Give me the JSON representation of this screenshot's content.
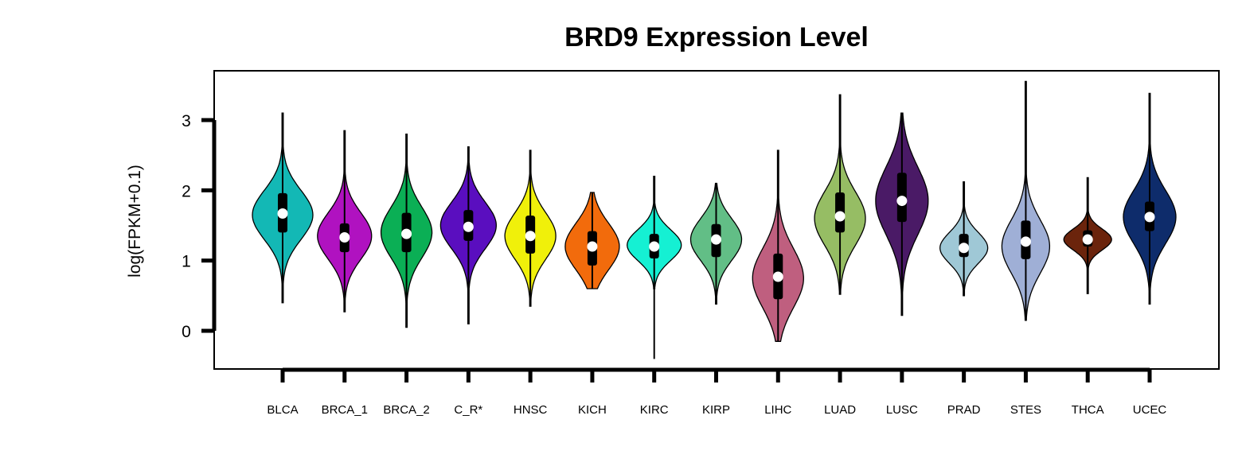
{
  "chart_data": {
    "type": "violin",
    "title": "BRD9 Expression Level",
    "ylabel": "log(FPKM+0.1)",
    "xlabel": "",
    "ylim": [
      -0.55,
      3.7
    ],
    "yticks": [
      0,
      1,
      2,
      3
    ],
    "categories": [
      "BLCA",
      "BRCA_1",
      "BRCA_2",
      "C_R*",
      "HNSC",
      "KICH",
      "KIRC",
      "KIRP",
      "LIHC",
      "LUAD",
      "LUSC",
      "PRAD",
      "STES",
      "THCA",
      "UCEC"
    ],
    "colors": [
      "#13B8B5",
      "#B012C0",
      "#0BAF55",
      "#5A0EBF",
      "#F0F00A",
      "#F26B0C",
      "#15F0D3",
      "#62BE86",
      "#BF5F7F",
      "#96BD64",
      "#4A1A66",
      "#9FC8D6",
      "#9FAFD6",
      "#6B240C",
      "#0E2C6B"
    ],
    "violins": [
      {
        "min": 0.4,
        "max": 3.1,
        "q1": 1.4,
        "median": 1.67,
        "q3": 1.96,
        "wmin": 0.4,
        "wmax": 3.1,
        "vmin": 0.4,
        "vmax": 3.1,
        "mode": 1.65,
        "sd": 0.35,
        "width": 38
      },
      {
        "min": 0.27,
        "max": 2.85,
        "q1": 1.12,
        "median": 1.33,
        "q3": 1.53,
        "wmin": 0.27,
        "wmax": 2.85,
        "vmin": 0.27,
        "vmax": 2.85,
        "mode": 1.35,
        "sd": 0.33,
        "width": 34
      },
      {
        "min": 0.05,
        "max": 2.8,
        "q1": 1.12,
        "median": 1.38,
        "q3": 1.68,
        "wmin": 0.05,
        "wmax": 2.8,
        "vmin": 0.05,
        "vmax": 2.8,
        "mode": 1.4,
        "sd": 0.36,
        "width": 32
      },
      {
        "min": 0.1,
        "max": 2.62,
        "q1": 1.28,
        "median": 1.48,
        "q3": 1.72,
        "wmin": 0.1,
        "wmax": 2.62,
        "vmin": 0.1,
        "vmax": 2.62,
        "mode": 1.5,
        "sd": 0.33,
        "width": 35
      },
      {
        "min": 0.35,
        "max": 2.57,
        "q1": 1.1,
        "median": 1.35,
        "q3": 1.64,
        "wmin": 0.35,
        "wmax": 2.57,
        "vmin": 0.35,
        "vmax": 2.57,
        "mode": 1.35,
        "sd": 0.33,
        "width": 32
      },
      {
        "min": 0.6,
        "max": 1.97,
        "q1": 0.93,
        "median": 1.2,
        "q3": 1.42,
        "wmin": 0.6,
        "wmax": 1.97,
        "vmin": 0.6,
        "vmax": 1.97,
        "mode": 1.2,
        "sd": 0.33,
        "width": 34
      },
      {
        "min": -0.4,
        "max": 2.2,
        "q1": 1.03,
        "median": 1.2,
        "q3": 1.38,
        "wmin": -0.4,
        "wmax": 2.2,
        "vmin": 0.6,
        "vmax": 2.2,
        "mode": 1.22,
        "sd": 0.22,
        "width": 34
      },
      {
        "min": 0.38,
        "max": 2.1,
        "q1": 1.05,
        "median": 1.3,
        "q3": 1.52,
        "wmin": 0.38,
        "wmax": 2.1,
        "vmin": 0.38,
        "vmax": 2.1,
        "mode": 1.3,
        "sd": 0.3,
        "width": 32
      },
      {
        "min": -0.15,
        "max": 2.57,
        "q1": 0.45,
        "median": 0.77,
        "q3": 1.1,
        "wmin": -0.15,
        "wmax": 2.57,
        "vmin": -0.15,
        "vmax": 2.57,
        "mode": 0.75,
        "sd": 0.42,
        "width": 32
      },
      {
        "min": 0.52,
        "max": 3.36,
        "q1": 1.4,
        "median": 1.63,
        "q3": 1.97,
        "wmin": 0.52,
        "wmax": 3.36,
        "vmin": 0.52,
        "vmax": 3.36,
        "mode": 1.6,
        "sd": 0.38,
        "width": 32
      },
      {
        "min": 0.22,
        "max": 3.1,
        "q1": 1.55,
        "median": 1.85,
        "q3": 2.25,
        "wmin": 0.22,
        "wmax": 3.1,
        "vmin": 0.22,
        "vmax": 3.1,
        "mode": 1.85,
        "sd": 0.48,
        "width": 33
      },
      {
        "min": 0.5,
        "max": 2.12,
        "q1": 1.05,
        "median": 1.18,
        "q3": 1.38,
        "wmin": 0.5,
        "wmax": 2.12,
        "vmin": 0.5,
        "vmax": 2.12,
        "mode": 1.18,
        "sd": 0.22,
        "width": 30
      },
      {
        "min": 0.15,
        "max": 3.55,
        "q1": 1.02,
        "median": 1.27,
        "q3": 1.57,
        "wmin": 0.15,
        "wmax": 3.55,
        "vmin": 0.15,
        "vmax": 3.55,
        "mode": 1.2,
        "sd": 0.38,
        "width": 30
      },
      {
        "min": 0.53,
        "max": 2.18,
        "q1": 1.2,
        "median": 1.3,
        "q3": 1.43,
        "wmin": 0.53,
        "wmax": 2.18,
        "vmin": 0.53,
        "vmax": 2.18,
        "mode": 1.3,
        "sd": 0.15,
        "width": 30
      },
      {
        "min": 0.38,
        "max": 3.38,
        "q1": 1.42,
        "median": 1.62,
        "q3": 1.84,
        "wmin": 0.38,
        "wmax": 3.38,
        "vmin": 0.38,
        "vmax": 3.38,
        "mode": 1.62,
        "sd": 0.38,
        "width": 33
      }
    ]
  }
}
